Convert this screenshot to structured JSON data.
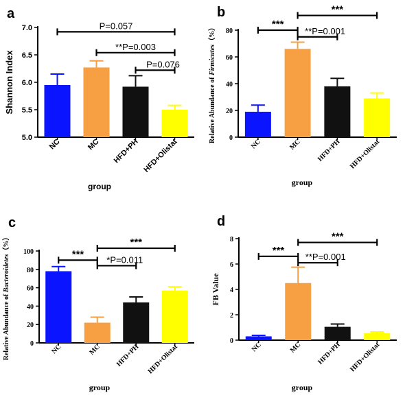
{
  "chart_data": [
    {
      "panel_label": "a",
      "type": "bar",
      "font": "sans",
      "categories": [
        "NC",
        "MC",
        "HFD+PH",
        "HFD+Olistat"
      ],
      "values": [
        5.95,
        6.27,
        5.92,
        5.5
      ],
      "errors": [
        0.2,
        0.12,
        0.2,
        0.08
      ],
      "colors": [
        "#0a14ff",
        "#f7a043",
        "#111111",
        "#ffff00"
      ],
      "xlabel": "group",
      "ylabel_parts": [
        {
          "text": "Shannon Index",
          "italic": false
        }
      ],
      "ylim": [
        5.0,
        7.0
      ],
      "ticks": [
        "5.0",
        "5.5",
        "6.0",
        "6.5",
        "7.0"
      ],
      "tick_values": [
        5.0,
        5.5,
        6.0,
        6.5,
        7.0
      ],
      "annotations": [
        {
          "from": 0,
          "to": 3,
          "y": 6.92,
          "label": "P=0.057"
        },
        {
          "from": 1,
          "to": 3,
          "y": 6.54,
          "label": "**P=0.003"
        },
        {
          "from": 2,
          "to": 3,
          "y": 6.22,
          "label": "P=0.076"
        }
      ]
    },
    {
      "panel_label": "b",
      "type": "bar",
      "font": "serif",
      "categories": [
        "NC",
        "MC",
        "HFD+PH",
        "HFD+Olistat"
      ],
      "values": [
        19,
        66,
        38,
        29
      ],
      "errors": [
        5,
        5,
        6,
        4
      ],
      "colors": [
        "#0a14ff",
        "#f7a043",
        "#111111",
        "#ffff00"
      ],
      "xlabel": "group",
      "ylabel_parts": [
        {
          "text": "Relative Abundance of ",
          "italic": false
        },
        {
          "text": "Firmicutes",
          "italic": true
        },
        {
          "text": "（%）",
          "italic": false
        }
      ],
      "ylim": [
        0,
        80
      ],
      "ticks": [
        "0",
        "20",
        "40",
        "60",
        "80"
      ],
      "tick_values": [
        0,
        20,
        40,
        60,
        80
      ],
      "annotations": [
        {
          "from": 0,
          "to": 1,
          "y": 80,
          "label": "***"
        },
        {
          "from": 1,
          "to": 3,
          "y": 91,
          "label": "***"
        },
        {
          "from": 1,
          "to": 2,
          "y": 75,
          "label": "**P=0.001"
        }
      ]
    },
    {
      "panel_label": "c",
      "type": "bar",
      "font": "serif",
      "categories": [
        "NC",
        "MC",
        "HFD+PH",
        "HFD+Olistat"
      ],
      "values": [
        78,
        22,
        44,
        57
      ],
      "errors": [
        5,
        6,
        6,
        4
      ],
      "colors": [
        "#0a14ff",
        "#f7a043",
        "#111111",
        "#ffff00"
      ],
      "xlabel": "group",
      "ylabel_parts": [
        {
          "text": "Relative Abundance of ",
          "italic": false
        },
        {
          "text": "Bacteroidetes",
          "italic": true
        },
        {
          "text": "（%）",
          "italic": false
        }
      ],
      "ylim": [
        0,
        100
      ],
      "ticks": [
        "0",
        "20",
        "40",
        "60",
        "80",
        "100"
      ],
      "tick_values": [
        0,
        20,
        40,
        60,
        80,
        100
      ],
      "annotations": [
        {
          "from": 0,
          "to": 1,
          "y": 90,
          "label": "***"
        },
        {
          "from": 1,
          "to": 3,
          "y": 103,
          "label": "***"
        },
        {
          "from": 1,
          "to": 2,
          "y": 84,
          "label": "*P=0.011"
        }
      ]
    },
    {
      "panel_label": "d",
      "type": "bar",
      "font": "serif",
      "categories": [
        "NC",
        "MC",
        "HFD+PH",
        "HFD+Olistat"
      ],
      "values": [
        0.3,
        4.5,
        1.05,
        0.55
      ],
      "errors": [
        0.08,
        1.25,
        0.22,
        0.1
      ],
      "colors": [
        "#0a14ff",
        "#f7a043",
        "#111111",
        "#ffff00"
      ],
      "xlabel": "group",
      "ylabel_parts": [
        {
          "text": "FB Value",
          "italic": false
        }
      ],
      "ylim": [
        0,
        8
      ],
      "ticks": [
        "0",
        "2",
        "4",
        "6",
        "8"
      ],
      "tick_values": [
        0,
        2,
        4,
        6,
        8
      ],
      "annotations": [
        {
          "from": 0,
          "to": 1,
          "y": 6.6,
          "label": "***"
        },
        {
          "from": 1,
          "to": 3,
          "y": 7.7,
          "label": "***"
        },
        {
          "from": 1,
          "to": 2,
          "y": 6.1,
          "label": "**P=0.001"
        }
      ]
    }
  ]
}
